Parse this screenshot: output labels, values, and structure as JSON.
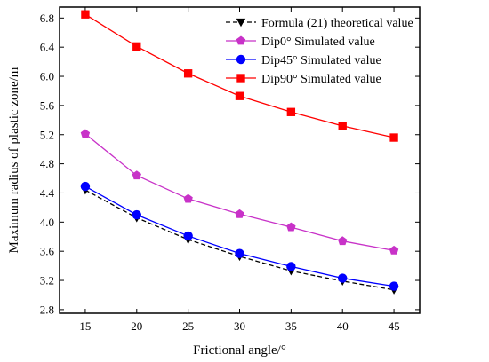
{
  "chart_data": {
    "type": "line",
    "title": "",
    "xlabel": "Frictional angle/°",
    "ylabel": "Maximum radius of plastic zone/m",
    "x": [
      15,
      20,
      25,
      30,
      35,
      40,
      45
    ],
    "xlim": [
      12.5,
      47.5
    ],
    "xticks": [
      "15",
      "20",
      "25",
      "30",
      "35",
      "40",
      "45"
    ],
    "ylim": [
      2.75,
      6.95
    ],
    "yticks": [
      "2.8",
      "3.2",
      "3.6",
      "4.0",
      "4.4",
      "4.8",
      "5.2",
      "5.6",
      "6.0",
      "6.4",
      "6.8"
    ],
    "grid": false,
    "legend_position": "top-right",
    "series": [
      {
        "name": "Formula (21) theoretical value",
        "color": "#000000",
        "dash": "dashed",
        "marker": "triangle-down",
        "values": [
          4.44,
          4.06,
          3.76,
          3.53,
          3.33,
          3.19,
          3.07
        ]
      },
      {
        "name": "Dip0° Simulated value",
        "color": "#c832c8",
        "dash": "solid",
        "marker": "pentagon",
        "values": [
          5.21,
          4.64,
          4.32,
          4.11,
          3.93,
          3.74,
          3.61
        ]
      },
      {
        "name": "Dip45° Simulated value",
        "color": "#0000ff",
        "dash": "solid",
        "marker": "circle",
        "values": [
          4.49,
          4.1,
          3.81,
          3.57,
          3.39,
          3.23,
          3.12
        ]
      },
      {
        "name": "Dip90° Simulated value",
        "color": "#ff0000",
        "dash": "solid",
        "marker": "square",
        "values": [
          6.85,
          6.41,
          6.04,
          5.73,
          5.51,
          5.32,
          5.16
        ]
      }
    ]
  }
}
